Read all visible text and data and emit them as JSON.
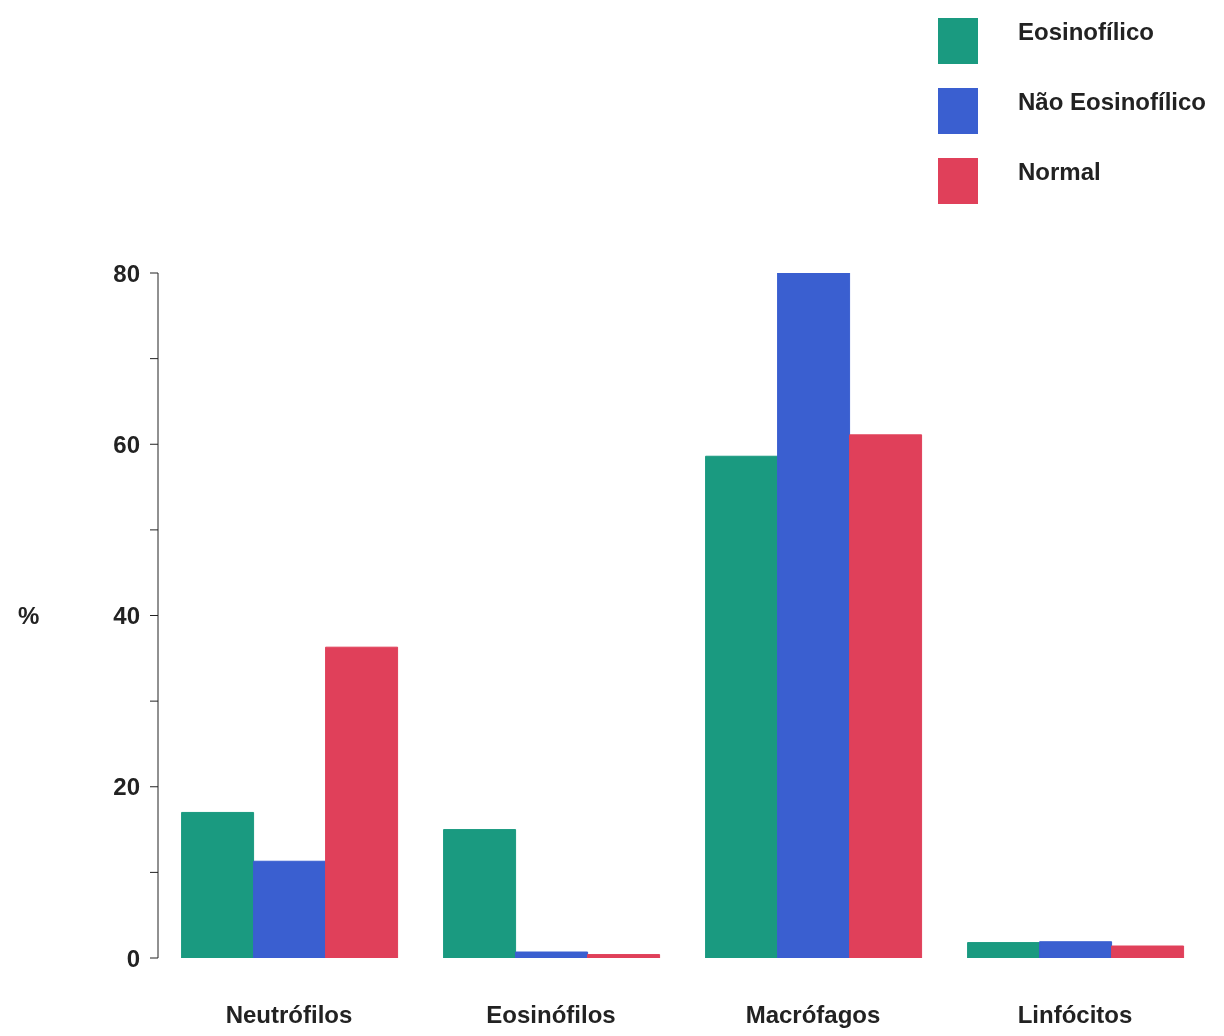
{
  "chart_data": {
    "type": "bar",
    "ylabel": "%",
    "categories": [
      "Neutrófilos",
      "Eosinófilos",
      "Macrófagos",
      "Linfócitos"
    ],
    "series": [
      {
        "name": "Eosinofílico",
        "color": "#1a9a80",
        "values": [
          17,
          15,
          58.6,
          1.8
        ]
      },
      {
        "name": "Não Eosinofílico",
        "color": "#3a5fd0",
        "values": [
          11.3,
          0.7,
          80,
          1.9
        ]
      },
      {
        "name": "Normal",
        "color": "#e0405a",
        "values": [
          36.3,
          0.4,
          61.1,
          1.4
        ]
      }
    ],
    "ylim": [
      0,
      80
    ],
    "yticks": [
      0,
      {
        "value": 10,
        "label": null
      },
      20,
      {
        "value": 30,
        "label": null
      },
      40,
      {
        "value": 50,
        "label": null
      },
      60,
      {
        "value": 70,
        "label": null
      },
      80
    ],
    "grid": false,
    "legend": "top right"
  }
}
